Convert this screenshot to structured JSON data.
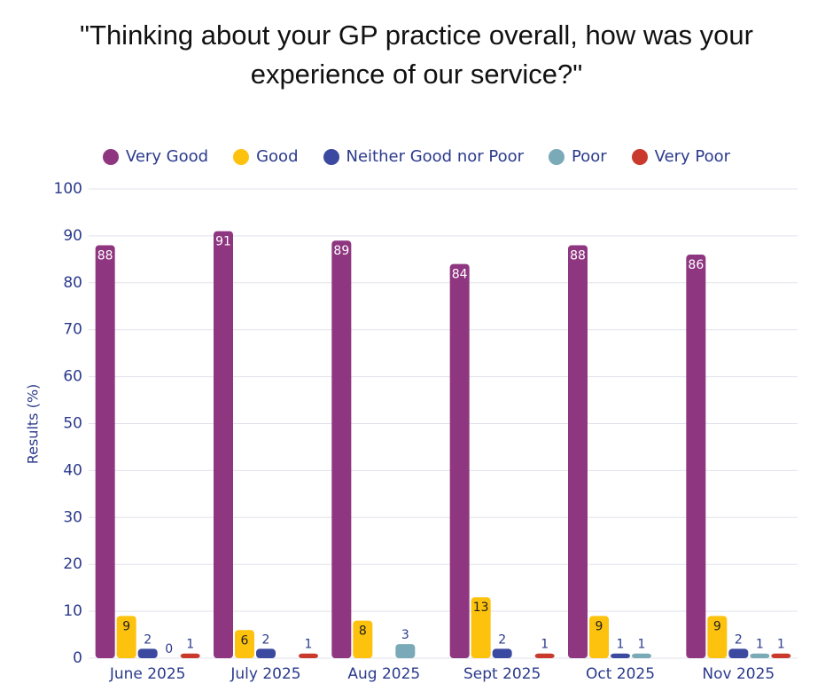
{
  "chart_data": {
    "type": "bar",
    "title": "\"Thinking about your GP practice overall, how was your\nexperience of our service?\"",
    "y_label": "Results (%)",
    "categories": [
      "June 2025",
      "July 2025",
      "Aug 2025",
      "Sept 2025",
      "Oct 2025",
      "Nov 2025"
    ],
    "series": [
      {
        "name": "Very Good",
        "color": "#8e3680",
        "values": [
          88,
          91,
          89,
          84,
          88,
          86
        ]
      },
      {
        "name": "Good",
        "color": "#fdc20e",
        "values": [
          9,
          6,
          8,
          13,
          9,
          9
        ]
      },
      {
        "name": "Neither Good nor Poor",
        "color": "#3b4aa0",
        "values": [
          2,
          2,
          null,
          2,
          1,
          2
        ]
      },
      {
        "name": "Poor",
        "color": "#7aa9b7",
        "values": [
          0,
          null,
          3,
          null,
          1,
          1
        ]
      },
      {
        "name": "Very Poor",
        "color": "#c93a2c",
        "values": [
          1,
          1,
          null,
          1,
          null,
          1
        ]
      }
    ],
    "ylim": [
      0,
      100
    ],
    "yticks": [
      0,
      10,
      20,
      30,
      40,
      50,
      60,
      70,
      80,
      90,
      100
    ],
    "grid": true,
    "legend": "top"
  }
}
